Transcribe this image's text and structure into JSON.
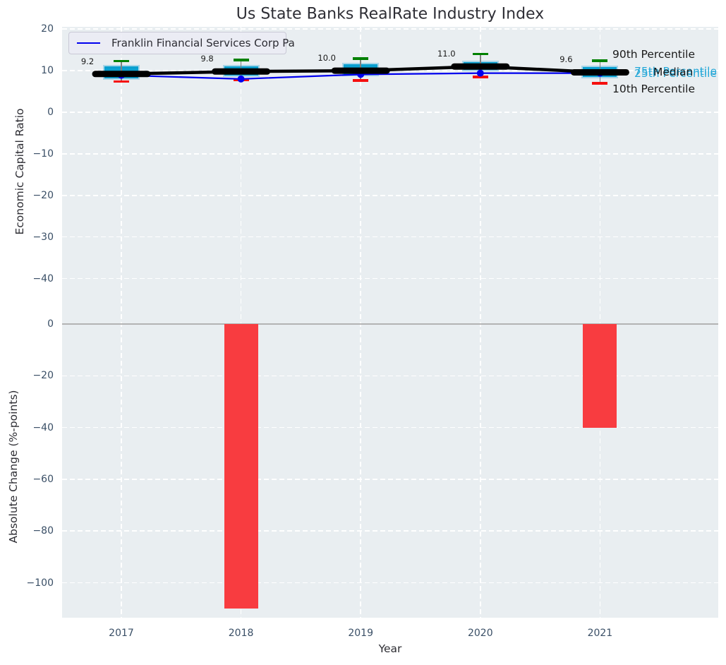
{
  "annotations": {
    "p90": "90th Percentile",
    "p75": "75th Percentile",
    "median": "Median",
    "p25": "25th Percentile",
    "p10": "10th Percentile"
  },
  "colors": {
    "plot_bg": "#e9eef1",
    "grid": "#ffffff",
    "box_fill": "#0aa0d0",
    "box_edge": "#a9d6e8",
    "median_line": "#000000",
    "p90_cap": "#008000",
    "p10_cap": "#f50f0f",
    "whisker_stem": "#7f7f7f",
    "franklin_line": "#0000ee",
    "bar": "#f83c40",
    "zero_line": "#b3b3b3",
    "tick_text": "#3a4f66",
    "annotation_cyan": "#25a8d8",
    "text_dark": "#2e2e35"
  },
  "chart_data": [
    {
      "type": "boxplot",
      "title": "Us State Banks RealRate Industry Index",
      "ylabel": "Economic Capital Ratio",
      "ylim": [
        -49,
        20.5
      ],
      "yticks": [
        20,
        10,
        0,
        -10,
        -20,
        -30,
        -40
      ],
      "grid": true,
      "legend_position": "upper left",
      "categories": [
        "2017",
        "2018",
        "2019",
        "2020",
        "2021"
      ],
      "series": [
        {
          "name": "90th Percentile",
          "values": [
            12.3,
            12.6,
            12.9,
            14.0,
            12.4
          ]
        },
        {
          "name": "75th Percentile",
          "values": [
            11.3,
            11.3,
            11.8,
            12.4,
            11.2
          ]
        },
        {
          "name": "Median",
          "values": [
            9.2,
            9.8,
            10.0,
            11.0,
            9.6
          ]
        },
        {
          "name": "25th Percentile",
          "values": [
            7.8,
            8.5,
            8.6,
            9.9,
            8.2
          ]
        },
        {
          "name": "10th Percentile",
          "values": [
            7.4,
            7.8,
            7.6,
            8.5,
            7.0
          ]
        },
        {
          "name": "Franklin Financial Services Corp Pa",
          "values": [
            8.9,
            8.0,
            9.1,
            9.4,
            9.4
          ]
        }
      ],
      "median_labels": [
        "9.2",
        "9.8",
        "10.0",
        "11.0",
        "9.6"
      ]
    },
    {
      "type": "bar",
      "ylabel": "Absolute Change (%-points)",
      "xlabel": "Year",
      "ylim": [
        -113.5,
        3
      ],
      "yticks": [
        0,
        -20,
        -40,
        -60,
        -80,
        -100
      ],
      "grid": true,
      "categories": [
        "2017",
        "2018",
        "2019",
        "2020",
        "2021"
      ],
      "values": [
        0,
        -110,
        0,
        0,
        -40
      ]
    }
  ]
}
